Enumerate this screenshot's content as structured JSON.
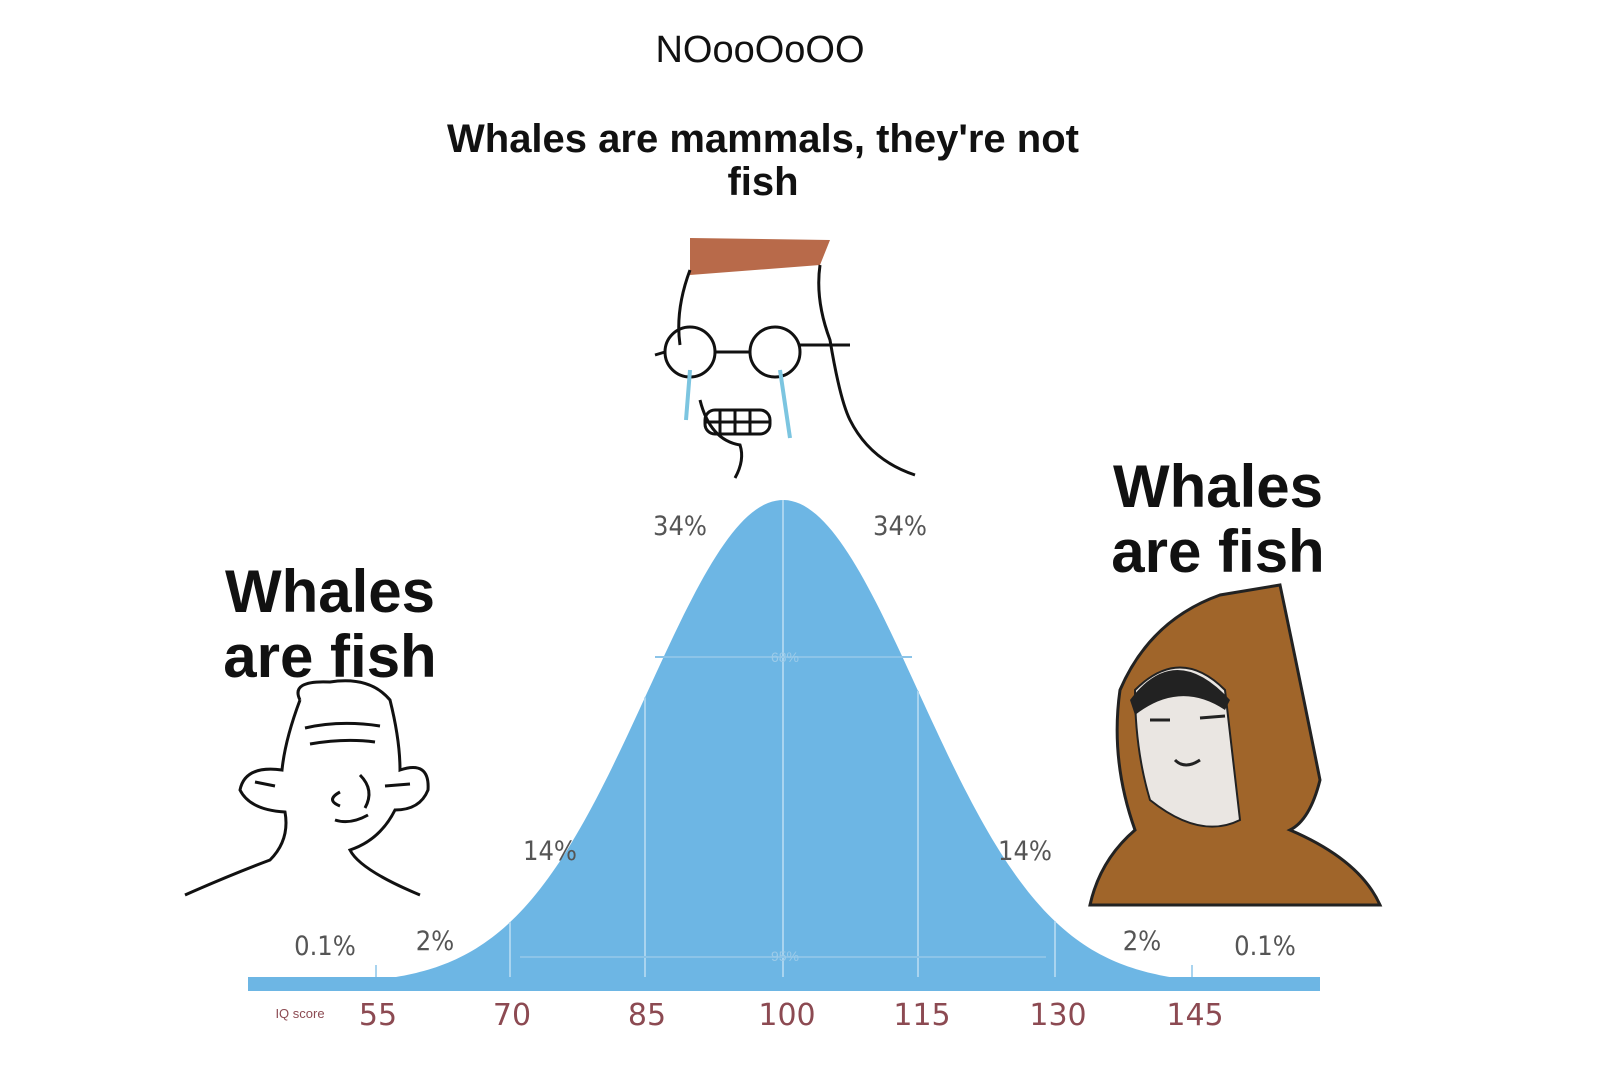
{
  "header": {
    "title": "NOooOoOO",
    "subtitle": "Whales are mammals, they're not fish"
  },
  "left_caption": "Whales are fish",
  "right_caption": "Whales are fish",
  "curve": {
    "percent_labels": [
      "0.1%",
      "2%",
      "14%",
      "34%",
      "34%",
      "14%",
      "2%",
      "0.1%"
    ],
    "inner_labels": [
      "68%",
      "95%"
    ],
    "axis_title": "IQ score",
    "axis_labels": [
      "55",
      "70",
      "85",
      "100",
      "115",
      "130",
      "145"
    ]
  }
}
